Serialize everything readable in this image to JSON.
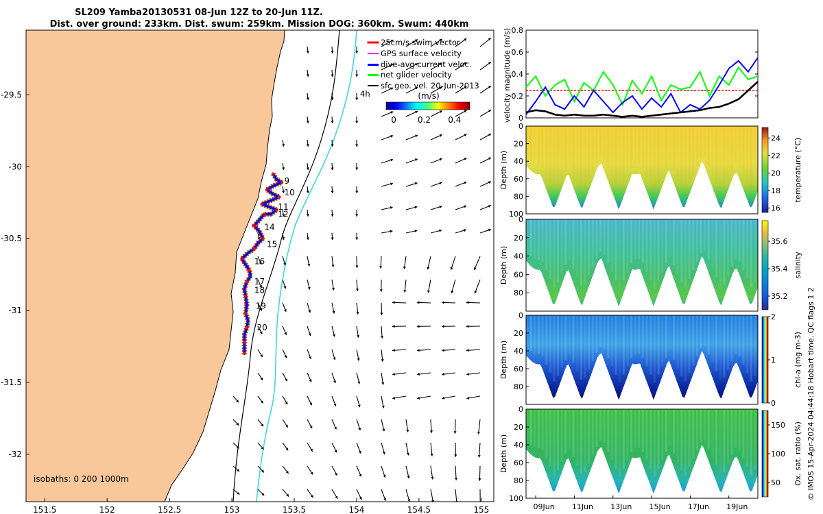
{
  "title": {
    "line1": "SL209 Yamba20130531 08-Jun 12Z to 20-Jun 11Z.",
    "line2": "Dist. over ground: 233km. Dist. swum: 259km. Mission DOG: 360km. Swum: 440km"
  },
  "colors": {
    "land": "#f8c89a",
    "sea": "#ffffff",
    "isobath200": "#000000",
    "isobath1000": "#40d8d8",
    "swim_vector": "#ff0000",
    "gps_velocity": "#ff00ff",
    "dive_avg_velocity": "#0000ff",
    "net_glider_velocity": "#00ff00",
    "sfc_geo_vel": "#000000"
  },
  "chart_data": [
    {
      "type": "map",
      "name": "glider-track-map",
      "xlim": [
        151.35,
        155.1
      ],
      "ylim": [
        -32.33,
        -29.05
      ],
      "xticks": [
        "151.5",
        "152",
        "152.5",
        "153",
        "153.5",
        "154",
        "154.5",
        "155"
      ],
      "yticks": [
        "-29.5",
        "-30",
        "-30.5",
        "-31",
        "-31.5",
        "-32"
      ],
      "legend": [
        "25cm/s swim vector",
        "GPS surface velocity",
        "dive-avg current veloc.",
        "net glider velocity",
        "sfc geo. vel. 20-Jun-2013"
      ],
      "legend_note": "4h",
      "colorbar": {
        "label": "(m/s)",
        "ticks": [
          "0",
          "0.2",
          "0.4"
        ],
        "range": [
          -0.05,
          0.5
        ]
      },
      "isobath_text": "isobaths: 0   200  1000m",
      "day_labels": [
        {
          "day": "9",
          "lon": 153.42,
          "lat": -30.1
        },
        {
          "day": "10",
          "lon": 153.42,
          "lat": -30.18
        },
        {
          "day": "11",
          "lon": 153.37,
          "lat": -30.28
        },
        {
          "day": "12",
          "lon": 153.37,
          "lat": -30.33
        },
        {
          "day": "14",
          "lon": 153.26,
          "lat": -30.42
        },
        {
          "day": "15",
          "lon": 153.28,
          "lat": -30.54
        },
        {
          "day": "16",
          "lon": 153.18,
          "lat": -30.66
        },
        {
          "day": "17",
          "lon": 153.18,
          "lat": -30.8
        },
        {
          "day": "18",
          "lon": 153.18,
          "lat": -30.86
        },
        {
          "day": "19",
          "lon": 153.19,
          "lat": -30.97
        },
        {
          "day": "20",
          "lon": 153.2,
          "lat": -31.12
        }
      ],
      "track": [
        [
          153.33,
          -30.05
        ],
        [
          153.36,
          -30.09
        ],
        [
          153.4,
          -30.11
        ],
        [
          153.34,
          -30.13
        ],
        [
          153.28,
          -30.16
        ],
        [
          153.33,
          -30.19
        ],
        [
          153.38,
          -30.21
        ],
        [
          153.3,
          -30.24
        ],
        [
          153.24,
          -30.26
        ],
        [
          153.3,
          -30.28
        ],
        [
          153.36,
          -30.3
        ],
        [
          153.31,
          -30.33
        ],
        [
          153.26,
          -30.33
        ],
        [
          153.22,
          -30.37
        ],
        [
          153.18,
          -30.41
        ],
        [
          153.22,
          -30.45
        ],
        [
          153.25,
          -30.5
        ],
        [
          153.21,
          -30.53
        ],
        [
          153.18,
          -30.57
        ],
        [
          153.13,
          -30.6
        ],
        [
          153.08,
          -30.64
        ],
        [
          153.11,
          -30.68
        ],
        [
          153.14,
          -30.72
        ],
        [
          153.15,
          -30.76
        ],
        [
          153.12,
          -30.8
        ],
        [
          153.1,
          -30.85
        ],
        [
          153.11,
          -30.9
        ],
        [
          153.12,
          -30.96
        ],
        [
          153.11,
          -31.02
        ],
        [
          153.13,
          -31.07
        ],
        [
          153.12,
          -31.12
        ],
        [
          153.1,
          -31.17
        ],
        [
          153.1,
          -31.22
        ],
        [
          153.1,
          -31.28
        ],
        [
          153.1,
          -31.3
        ]
      ]
    },
    {
      "type": "line",
      "name": "velocity-magnitude",
      "ylabel": "velocity magnitude (m/s)",
      "xlim": [
        0,
        12
      ],
      "ylim": [
        0,
        0.8
      ],
      "yticks": [
        "0",
        "0.2",
        "0.4",
        "0.6",
        "0.8"
      ],
      "x": [
        0,
        0.5,
        1,
        1.5,
        2,
        2.5,
        3,
        3.5,
        4,
        4.5,
        5,
        5.5,
        6,
        6.5,
        7,
        7.5,
        8,
        8.5,
        9,
        9.5,
        10,
        10.5,
        11,
        11.5,
        12
      ],
      "series": [
        {
          "name": "25cm/s swim vector",
          "color": "#ff0000",
          "values": [
            0.25,
            0.25,
            0.25,
            0.25,
            0.25,
            0.25,
            0.25,
            0.25,
            0.25,
            0.25,
            0.25,
            0.25,
            0.25,
            0.25,
            0.25,
            0.25,
            0.25,
            0.25,
            0.25,
            0.25,
            0.25,
            0.25,
            0.25,
            0.25,
            0.25
          ]
        },
        {
          "name": "net glider velocity",
          "color": "#00ff00",
          "values": [
            0.28,
            0.38,
            0.2,
            0.3,
            0.35,
            0.15,
            0.32,
            0.25,
            0.42,
            0.3,
            0.12,
            0.34,
            0.22,
            0.38,
            0.16,
            0.3,
            0.26,
            0.28,
            0.42,
            0.2,
            0.38,
            0.3,
            0.46,
            0.35,
            0.38
          ]
        },
        {
          "name": "dive-avg current veloc.",
          "color": "#0000ff",
          "values": [
            0.03,
            0.15,
            0.28,
            0.12,
            0.08,
            0.2,
            0.1,
            0.25,
            0.15,
            0.05,
            0.14,
            0.2,
            0.08,
            0.18,
            0.1,
            0.22,
            0.05,
            0.12,
            0.08,
            0.16,
            0.3,
            0.45,
            0.52,
            0.42,
            0.55
          ]
        },
        {
          "name": "sfc geo. vel. 20-Jun-2013",
          "color": "#000000",
          "values": [
            0.05,
            0.07,
            0.06,
            0.03,
            0.02,
            0.03,
            0.02,
            0.02,
            0.03,
            0.02,
            0.01,
            0.02,
            0.01,
            0.02,
            0.03,
            0.04,
            0.05,
            0.06,
            0.07,
            0.09,
            0.1,
            0.13,
            0.17,
            0.25,
            0.33
          ]
        }
      ]
    },
    {
      "type": "heatmap",
      "name": "temperature",
      "ylabel": "Depth (m)",
      "cbar_label": "temperature (°C)",
      "cbar_ticks": [
        "16",
        "18",
        "20",
        "22",
        "24"
      ],
      "cbar_range": [
        15.5,
        25.2
      ],
      "depth_ticks": [
        "0",
        "20",
        "40",
        "60",
        "80",
        "100"
      ],
      "surface_value": 21.5,
      "deep_value": 17.5
    },
    {
      "type": "heatmap",
      "name": "salinity",
      "ylabel": "Depth (m)",
      "cbar_label": "salinity",
      "cbar_ticks": [
        "35.2",
        "35.4",
        "35.6"
      ],
      "cbar_range": [
        35.1,
        35.75
      ],
      "depth_ticks": [
        "0",
        "20",
        "40",
        "60",
        "80"
      ],
      "surface_value": 35.4,
      "deep_value": 35.5
    },
    {
      "type": "heatmap",
      "name": "chlorophyll-a",
      "ylabel": "Depth (m)",
      "cbar_label": "chl-a (mg m-3)",
      "cbar_ticks": [
        "0",
        "1",
        "2"
      ],
      "cbar_range": [
        0,
        2
      ],
      "depth_ticks": [
        "0",
        "20",
        "40",
        "60",
        "80"
      ],
      "surface_value": 0.6,
      "deep_value": 0.25
    },
    {
      "type": "heatmap",
      "name": "oxygen-saturation",
      "ylabel": "Depth (m)",
      "cbar_label": "Ox. sat. ratio (%)",
      "cbar_ticks": [
        "50",
        "100",
        "150"
      ],
      "cbar_range": [
        25,
        175
      ],
      "depth_ticks": [
        "0",
        "20",
        "40",
        "60",
        "80",
        "100"
      ],
      "surface_value": 100,
      "deep_value": 82
    }
  ],
  "time_axis": {
    "labels": [
      "09Jun",
      "11Jun",
      "13Jun",
      "15Jun",
      "17Jun",
      "19Jun"
    ],
    "positions": [
      0.5,
      2.5,
      4.5,
      6.5,
      8.5,
      10.5
    ],
    "range": [
      0,
      12
    ]
  },
  "side_note": "© IMOS 15-Apr-2024 04:44:18 Hobart time. QC flags 1  2"
}
